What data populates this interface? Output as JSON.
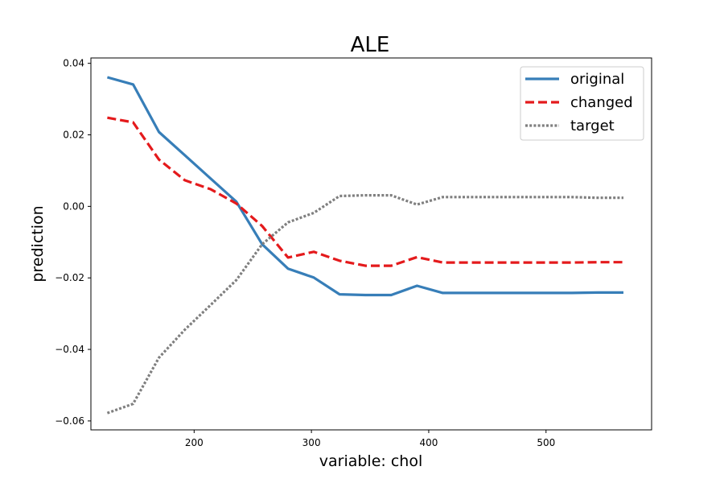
{
  "chart_data": {
    "type": "line",
    "title": "ALE",
    "xlabel": "variable: chol",
    "ylabel": "prediction",
    "xlim": [
      112,
      590
    ],
    "ylim": [
      -0.0625,
      0.0415
    ],
    "xticks": [
      200,
      300,
      400,
      500
    ],
    "xtick_labels": [
      "200",
      "300",
      "400",
      "500"
    ],
    "yticks": [
      -0.06,
      -0.04,
      -0.02,
      0.0,
      0.02,
      0.04
    ],
    "ytick_labels": [
      "−0.06",
      "−0.04",
      "−0.02",
      "0.00",
      "0.02",
      "0.04"
    ],
    "grid": false,
    "legend_position": "top-right",
    "x": [
      126,
      148,
      170,
      192,
      214,
      236,
      258,
      280,
      302,
      324,
      346,
      368,
      390,
      412,
      434,
      456,
      478,
      500,
      522,
      544,
      566
    ],
    "series": [
      {
        "name": "original",
        "color": "#377eb8",
        "style": "solid",
        "values": [
          0.0361,
          0.0341,
          0.0208,
          0.0143,
          0.0078,
          0.0013,
          -0.0106,
          -0.0174,
          -0.0199,
          -0.0246,
          -0.0248,
          -0.0248,
          -0.0222,
          -0.0242,
          -0.0242,
          -0.0242,
          -0.0242,
          -0.0242,
          -0.0242,
          -0.0241,
          -0.0241
        ]
      },
      {
        "name": "changed",
        "color": "#e41a1c",
        "style": "dashed",
        "values": [
          0.0248,
          0.0235,
          0.0131,
          0.0073,
          0.0048,
          0.0008,
          -0.0055,
          -0.0143,
          -0.0127,
          -0.0152,
          -0.0166,
          -0.0166,
          -0.0142,
          -0.0157,
          -0.0157,
          -0.0157,
          -0.0157,
          -0.0157,
          -0.0157,
          -0.0156,
          -0.0156
        ]
      },
      {
        "name": "target",
        "color": "#7f7f7f",
        "style": "dotted",
        "values": [
          -0.0578,
          -0.0552,
          -0.0423,
          -0.0345,
          -0.0276,
          -0.0206,
          -0.0106,
          -0.0045,
          -0.0018,
          0.0029,
          0.0031,
          0.0031,
          0.0005,
          0.0026,
          0.0026,
          0.0026,
          0.0026,
          0.0026,
          0.0026,
          0.0024,
          0.0024
        ]
      }
    ]
  }
}
